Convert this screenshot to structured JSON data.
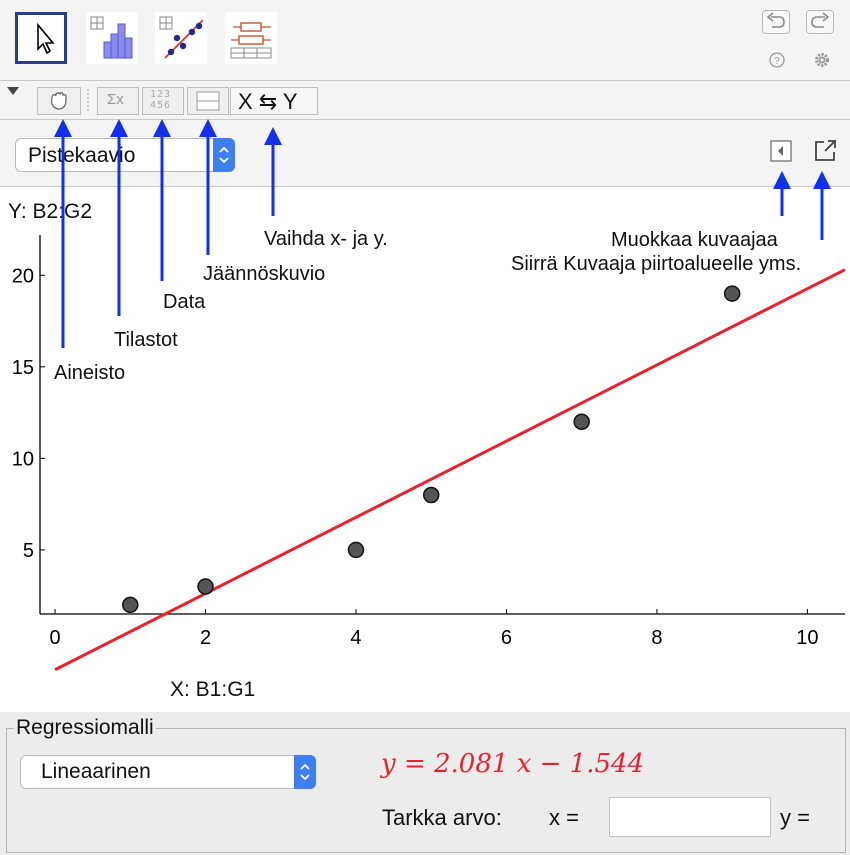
{
  "toolbar": {
    "tools": [
      {
        "name": "move-tool",
        "icon": "arrow-pointer-icon"
      },
      {
        "name": "one-variable-analysis-tool",
        "icon": "histogram-icon"
      },
      {
        "name": "two-variable-regression-tool",
        "icon": "scatter-regression-icon"
      },
      {
        "name": "multi-variable-analysis-tool",
        "icon": "boxplot-icon"
      }
    ],
    "undo_icon": "undo-icon",
    "redo_icon": "redo-icon",
    "help_icon": "help-icon",
    "settings_icon": "gear-icon"
  },
  "subbar": {
    "buttons": [
      {
        "name": "hand-icon"
      },
      {
        "name": "statistics-icon",
        "label": "Σx"
      },
      {
        "name": "data-icon",
        "label": "123 456"
      },
      {
        "name": "residual-plot-icon"
      },
      {
        "name": "swap-xy-button",
        "label": "X ⇆ Y"
      }
    ]
  },
  "plot_type": {
    "selected": "Pistekaavio"
  },
  "annotations": {
    "aineisto": "Aineisto",
    "tilastot": "Tilastot",
    "data": "Data",
    "jaannoskuvio": "Jäännöskuvio",
    "vaihda": "Vaihda x- ja y.",
    "muokkaa": "Muokkaa kuvaajaa",
    "siirra": "Siirrä Kuvaaja piirtoalueelle yms."
  },
  "plot": {
    "y_source": "Y:  B2:G2",
    "x_source": "X:  B1:G1"
  },
  "chart_data": {
    "type": "scatter",
    "x": [
      1,
      2,
      4,
      5,
      7,
      9
    ],
    "y": [
      2,
      3,
      5,
      8,
      12,
      19
    ],
    "xlim": [
      -0.2,
      10.5
    ],
    "ylim": [
      1.5,
      22.2
    ],
    "xticks": [
      0,
      2,
      4,
      6,
      8,
      10
    ],
    "yticks": [
      5,
      10,
      15,
      20
    ],
    "regression": {
      "slope": 2.081,
      "intercept": -1.544
    },
    "colors": {
      "points": "#555555",
      "line": "#e8232f"
    }
  },
  "regression": {
    "title": "Regressiomalli",
    "model": "Lineaarinen",
    "equation": "y = 2.081 x − 1.544",
    "exact_label": "Tarkka arvo:",
    "x_label": "x =",
    "x_value": "",
    "y_label": "y ="
  }
}
